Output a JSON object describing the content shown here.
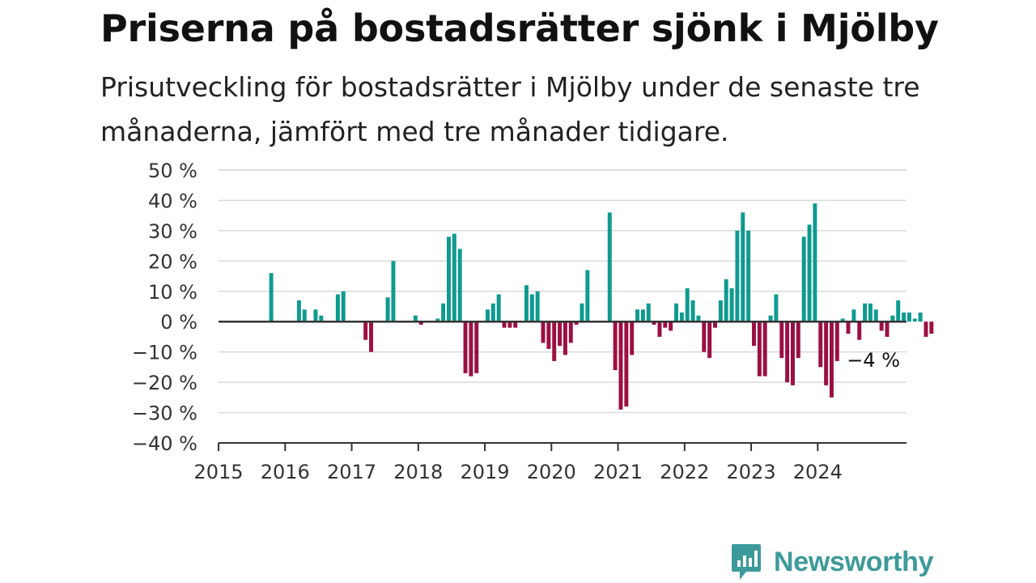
{
  "header": {
    "title": "Priserna på bostadsrätter sjönk i Mjölby",
    "subtitle": "Prisutveckling för bostadsrätter i Mjölby under de senaste tre månaderna, jämfört med tre månader tidigare."
  },
  "brand": {
    "name": "Newsworthy",
    "icon": "newsworthy-logo-icon",
    "color": "#3d9a9a"
  },
  "colors": {
    "positive": "#0e9a8f",
    "negative": "#9c0f43",
    "grid": "#d9d9d9",
    "axis": "#333333"
  },
  "chart_data": {
    "type": "bar",
    "x_unit": "month",
    "x_start": "2015-01",
    "ylim": [
      -40,
      50
    ],
    "yticks": [
      "50 %",
      "40 %",
      "30 %",
      "20 %",
      "10 %",
      "0 %",
      "−10 %",
      "−20 %",
      "−30 %",
      "−40 %"
    ],
    "ytick_values": [
      50,
      40,
      30,
      20,
      10,
      0,
      -10,
      -20,
      -30,
      -40
    ],
    "xticks": [
      "2015",
      "2016",
      "2017",
      "2018",
      "2019",
      "2020",
      "2021",
      "2022",
      "2023",
      "2024"
    ],
    "grid": true,
    "annotation": {
      "text": "−4 %",
      "value": -4
    },
    "values": [
      null,
      null,
      null,
      null,
      null,
      null,
      null,
      null,
      null,
      16,
      null,
      null,
      null,
      null,
      7,
      4,
      null,
      4,
      2,
      null,
      null,
      9,
      10,
      null,
      null,
      null,
      -6,
      -10,
      null,
      null,
      8,
      20,
      null,
      null,
      null,
      2,
      -1,
      null,
      null,
      1,
      6,
      28,
      29,
      24,
      -17,
      -18,
      -17,
      null,
      4,
      6,
      9,
      -2,
      -2,
      -2,
      null,
      12,
      9,
      10,
      -7,
      -9,
      -13,
      -8,
      -11,
      -7,
      -1,
      6,
      17,
      null,
      null,
      null,
      36,
      -16,
      -29,
      -28,
      -11,
      4,
      4,
      6,
      -1,
      -5,
      -2,
      -3,
      6,
      3,
      11,
      7,
      2,
      -10,
      -12,
      -2,
      7,
      14,
      11,
      30,
      36,
      30,
      -8,
      -18,
      -18,
      2,
      9,
      -12,
      -20,
      -21,
      -12,
      28,
      32,
      39,
      -15,
      -21,
      -25,
      -13,
      1,
      -4,
      4,
      -6,
      6,
      6,
      4,
      -3,
      -5,
      2,
      7,
      3,
      3,
      1,
      3,
      -5,
      -4
    ]
  }
}
